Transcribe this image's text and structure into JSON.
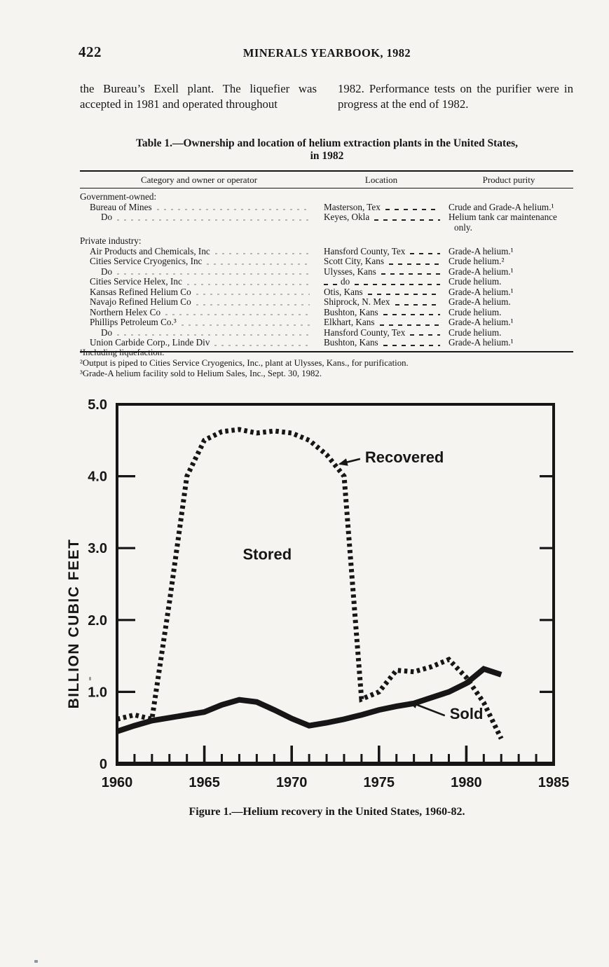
{
  "colors": {
    "paper": "#f5f4f1",
    "ink": "#161616"
  },
  "page": {
    "page_number": "422",
    "header": "MINERALS YEARBOOK, 1982",
    "intro_col1": "the Bureau’s Exell plant. The liquefier was accepted in 1981 and operated throughout",
    "intro_col2": "1982. Performance tests on the purifier were in progress at the end of 1982."
  },
  "table": {
    "title_line1": "Table 1.—Ownership and location of helium extraction plants in the United States,",
    "title_line2": "in 1982",
    "columns": [
      "Category and owner or operator",
      "Location",
      "Product purity"
    ],
    "rows": [
      {
        "owner": "Government-owned:",
        "indent": 0,
        "group": true,
        "location": "",
        "purity": ""
      },
      {
        "owner": "Bureau of Mines",
        "indent": 1,
        "location": "Masterson, Tex",
        "purity": "Crude and Grade-A helium.¹"
      },
      {
        "owner": "Do",
        "indent": 2,
        "location": "Keyes, Okla",
        "purity": "Helium tank car maintenance only."
      },
      {
        "owner": "Private industry:",
        "indent": 0,
        "group": true,
        "location": "",
        "purity": ""
      },
      {
        "owner": "Air Products and Chemicals, Inc",
        "indent": 1,
        "location": "Hansford County, Tex",
        "purity": "Grade-A helium.¹"
      },
      {
        "owner": "Cities Service Cryogenics, Inc",
        "indent": 1,
        "location": "Scott City, Kans",
        "purity": "Crude helium.²"
      },
      {
        "owner": "Do",
        "indent": 2,
        "location": "Ulysses, Kans",
        "purity": "Grade-A helium.¹"
      },
      {
        "owner": "Cities Service Helex, Inc",
        "indent": 1,
        "location": "do",
        "location_do": true,
        "purity": "Crude helium."
      },
      {
        "owner": "Kansas Refined Helium Co",
        "indent": 1,
        "location": "Otis, Kans",
        "purity": "Grade-A helium.¹"
      },
      {
        "owner": "Navajo Refined Helium Co",
        "indent": 1,
        "location": "Shiprock, N. Mex",
        "purity": "Grade-A helium."
      },
      {
        "owner": "Northern Helex Co",
        "indent": 1,
        "location": "Bushton, Kans",
        "purity": "Crude helium."
      },
      {
        "owner": "Phillips Petroleum Co.³",
        "indent": 1,
        "location": "Elkhart, Kans",
        "purity": "Grade-A helium.¹"
      },
      {
        "owner": "Do",
        "indent": 2,
        "location": "Hansford County, Tex",
        "purity": "Crude helium."
      },
      {
        "owner": "Union Carbide Corp., Linde Div",
        "indent": 1,
        "location": "Bushton, Kans",
        "purity": "Grade-A helium.¹"
      }
    ],
    "footnotes": [
      "¹Including liquefaction.",
      "²Output is piped to Cities Service Cryogenics, Inc., plant at Ulysses, Kans., for purification.",
      "³Grade-A helium facility sold to Helium Sales, Inc., Sept. 30, 1982."
    ]
  },
  "figure": {
    "caption": "Figure 1.—Helium recovery in the United States, 1960-82."
  },
  "chart_data": {
    "type": "line",
    "title": "Helium recovery in the United States, 1960-82",
    "xlabel": "",
    "ylabel": "BILLION CUBIC FEET",
    "xlim": [
      1960,
      1985
    ],
    "ylim": [
      0,
      5
    ],
    "grid": false,
    "legend_position": "inline-annotations",
    "x_tick_labels": [
      "1960",
      "1965",
      "1970",
      "1975",
      "1980",
      "1985"
    ],
    "y_tick_labels": [
      "5.0",
      "4.0",
      "3.0",
      "2.0",
      "1.0",
      "0"
    ],
    "x": [
      1960,
      1961,
      1962,
      1963,
      1964,
      1965,
      1966,
      1967,
      1968,
      1969,
      1970,
      1971,
      1972,
      1973,
      1974,
      1975,
      1976,
      1977,
      1978,
      1979,
      1980,
      1981,
      1982
    ],
    "series": [
      {
        "name": "Recovered",
        "style": "dotted",
        "values": [
          0.62,
          0.68,
          0.62,
          2.25,
          4.0,
          4.5,
          4.62,
          4.65,
          4.6,
          4.63,
          4.6,
          4.5,
          4.3,
          4.0,
          0.9,
          1.0,
          1.3,
          1.28,
          1.35,
          1.45,
          1.2,
          0.85,
          0.35
        ]
      },
      {
        "name": "Sold",
        "style": "solid",
        "values": [
          0.45,
          0.53,
          0.6,
          0.64,
          0.68,
          0.72,
          0.82,
          0.89,
          0.86,
          0.75,
          0.63,
          0.53,
          0.57,
          0.62,
          0.68,
          0.75,
          0.8,
          0.84,
          0.92,
          1.0,
          1.12,
          1.32,
          1.24
        ]
      }
    ],
    "annotations": [
      {
        "text": "Stored",
        "x": 1968.6,
        "y": 2.92,
        "anchor": "middle"
      },
      {
        "text": "Recovered",
        "x": 1974.2,
        "y": 4.27,
        "anchor": "start",
        "arrow_to_x": 1972.75,
        "arrow_to_y": 4.17
      },
      {
        "text": "Sold",
        "x": 1979.05,
        "y": 0.7,
        "anchor": "start",
        "arrow_to_x": 1976.75,
        "arrow_to_y": 0.86
      }
    ]
  }
}
